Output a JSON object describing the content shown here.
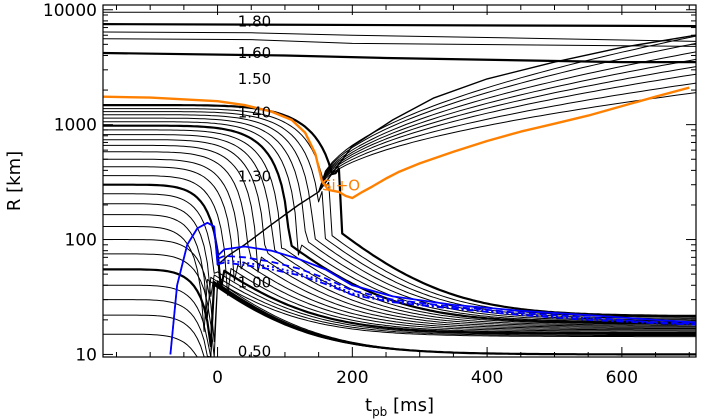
{
  "chart_data": {
    "type": "line",
    "xlabel_main": "t",
    "xlabel_sub": "pb",
    "xlabel_unit": "[ms]",
    "ylabel": "R [km]",
    "xlim": [
      -170,
      710
    ],
    "ylim": [
      9.5,
      11000
    ],
    "yscale": "log",
    "xticks": [
      0,
      200,
      400,
      600
    ],
    "yticks": [
      10,
      100,
      1000,
      10000
    ],
    "x_minor_step": 50,
    "grid": false,
    "colors": {
      "shells": "#000000",
      "silicon_oxygen": "#ff8000",
      "shock_and_radii": "#0000ff"
    },
    "mass_shell_labels": [
      {
        "text": "1.80",
        "x": 30,
        "y": 8100
      },
      {
        "text": "1.60",
        "x": 30,
        "y": 4300
      },
      {
        "text": "1.50",
        "x": 30,
        "y": 2550
      },
      {
        "text": "1.40",
        "x": 30,
        "y": 1300
      },
      {
        "text": "1.30",
        "x": 30,
        "y": 360
      },
      {
        "text": "1.00",
        "x": 30,
        "y": 43
      },
      {
        "text": "0.50",
        "x": 30,
        "y": 10.8
      }
    ],
    "series_label": {
      "text": "Si+O",
      "x": 155,
      "y": 300
    },
    "outer_shells": [
      {
        "bold": false,
        "x": [
          -170,
          710
        ],
        "y": [
          9500,
          9500
        ]
      },
      {
        "bold": true,
        "x": [
          -170,
          710
        ],
        "y": [
          7500,
          7200
        ]
      },
      {
        "bold": false,
        "x": [
          -170,
          50,
          200,
          500,
          710
        ],
        "y": [
          6400,
          6300,
          6000,
          5600,
          5300
        ]
      },
      {
        "bold": false,
        "x": [
          -170,
          50,
          200,
          710
        ],
        "y": [
          5600,
          5500,
          5100,
          4800
        ]
      },
      {
        "bold": true,
        "x": [
          -170,
          100,
          250,
          600,
          710
        ],
        "y": [
          4200,
          4000,
          3800,
          3500,
          3500
        ]
      }
    ],
    "inner_shells": {
      "r0_km": [
        15,
        22,
        30,
        40,
        55,
        75,
        100,
        130,
        165,
        205,
        250,
        300,
        360,
        430,
        500,
        580,
        660,
        740,
        820,
        900,
        980,
        1060,
        1140,
        1220,
        1300,
        1380,
        1480
      ],
      "bold": [
        false,
        false,
        false,
        false,
        true,
        false,
        false,
        false,
        false,
        false,
        false,
        true,
        false,
        false,
        false,
        false,
        false,
        false,
        false,
        false,
        true,
        false,
        false,
        false,
        false,
        false,
        true
      ],
      "final_r_km": [
        10,
        10,
        10,
        10,
        10,
        10,
        10,
        10,
        14.3,
        14.6,
        14.9,
        15.2,
        15.6,
        16.0,
        16.4,
        16.8,
        17.2,
        17.6,
        18.0,
        18.4,
        18.8,
        19.2,
        19.6,
        20.0,
        20.5,
        21.0,
        21.5
      ]
    },
    "shock_expansion_outer_km": [
      1900,
      2300,
      2750,
      3200,
      3700,
      4300,
      5100,
      5900
    ],
    "shock": {
      "x": [
        -70,
        -60,
        -45,
        -30,
        -15,
        -5,
        0,
        15,
        40,
        80,
        120,
        150
      ],
      "y": [
        10,
        40,
        90,
        125,
        140,
        130,
        60,
        72,
        90,
        135,
        200,
        260
      ]
    },
    "shock_outer": {
      "x": [
        150,
        200,
        260,
        320,
        400,
        500,
        600,
        710
      ],
      "y": [
        260,
        650,
        1100,
        1700,
        2500,
        3500,
        4700,
        6000
      ]
    },
    "silicon_oxygen": {
      "x": [
        -170,
        -100,
        0,
        40,
        80,
        110,
        130,
        145,
        155,
        165,
        180,
        190,
        200,
        215,
        230,
        250,
        270,
        300,
        350,
        400,
        450,
        500,
        550,
        600,
        650,
        700
      ],
      "y": [
        1750,
        1720,
        1600,
        1480,
        1300,
        1100,
        850,
        560,
        320,
        270,
        260,
        240,
        230,
        260,
        290,
        340,
        390,
        460,
        580,
        720,
        870,
        1020,
        1200,
        1450,
        1750,
        2100
      ]
    },
    "blue_radii": [
      {
        "style": "solid",
        "x": [
          0,
          10,
          40,
          80,
          120,
          160,
          200,
          260,
          350,
          450,
          550,
          650,
          710
        ],
        "y": [
          72,
          82,
          87,
          80,
          68,
          55,
          40,
          32,
          27,
          24,
          22,
          20,
          19
        ]
      },
      {
        "style": "dashed",
        "x": [
          0,
          10,
          40,
          80,
          120,
          160,
          200,
          260,
          350,
          450,
          550,
          650,
          710
        ],
        "y": [
          68,
          72,
          70,
          64,
          56,
          46,
          36,
          30,
          26,
          23,
          21,
          19,
          18.6
        ]
      },
      {
        "style": "dotted",
        "x": [
          0,
          10,
          40,
          80,
          120,
          160,
          200,
          260,
          350,
          450,
          550,
          650,
          710
        ],
        "y": [
          64,
          66,
          63,
          58,
          51,
          43,
          34,
          29,
          25.5,
          22.5,
          20.5,
          19,
          18.4
        ]
      },
      {
        "style": "dashdot",
        "x": [
          0,
          10,
          40,
          80,
          120,
          160,
          200,
          260,
          350,
          450,
          550,
          650,
          710
        ],
        "y": [
          61,
          63,
          60,
          55,
          49,
          41,
          33,
          28.5,
          25,
          22,
          20,
          18.7,
          18.2
        ]
      }
    ]
  }
}
